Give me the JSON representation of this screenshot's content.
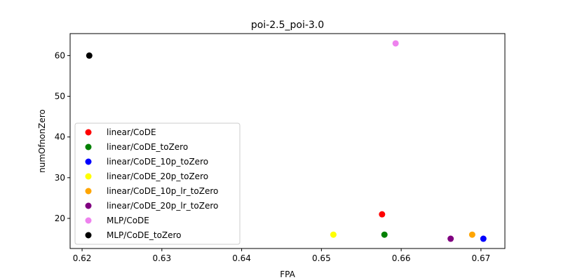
{
  "chart_data": {
    "type": "scatter",
    "title": "poi-2.5_poi-3.0",
    "xlabel": "FPA",
    "ylabel": "numOfnonZero",
    "xlim": [
      0.6185,
      0.673
    ],
    "ylim": [
      12.6,
      65.4
    ],
    "xticks": [
      0.62,
      0.63,
      0.64,
      0.65,
      0.66,
      0.67
    ],
    "xtick_labels": [
      "0.62",
      "0.63",
      "0.64",
      "0.65",
      "0.66",
      "0.67"
    ],
    "yticks": [
      20,
      30,
      40,
      50,
      60
    ],
    "ytick_labels": [
      "20",
      "30",
      "40",
      "50",
      "60"
    ],
    "grid": false,
    "legend_position": "lower-left",
    "series": [
      {
        "name": "linear/CoDE",
        "color": "#ff0000",
        "points": [
          {
            "x": 0.6576,
            "y": 21
          }
        ]
      },
      {
        "name": "linear/CoDE_toZero",
        "color": "#008000",
        "points": [
          {
            "x": 0.6579,
            "y": 16
          }
        ]
      },
      {
        "name": "linear/CoDE_10p_toZero",
        "color": "#0000ff",
        "points": [
          {
            "x": 0.6703,
            "y": 15
          }
        ]
      },
      {
        "name": "linear/CoDE_20p_toZero",
        "color": "#ffff00",
        "points": [
          {
            "x": 0.6515,
            "y": 16
          }
        ]
      },
      {
        "name": "linear/CoDE_10p_lr_toZero",
        "color": "#ffa500",
        "points": [
          {
            "x": 0.6689,
            "y": 16
          }
        ]
      },
      {
        "name": "linear/CoDE_20p_lr_toZero",
        "color": "#800080",
        "points": [
          {
            "x": 0.6662,
            "y": 15
          }
        ]
      },
      {
        "name": "MLP/CoDE",
        "color": "#ee82ee",
        "points": [
          {
            "x": 0.6593,
            "y": 63
          }
        ]
      },
      {
        "name": "MLP/CoDE_toZero",
        "color": "#000000",
        "points": [
          {
            "x": 0.6209,
            "y": 60
          }
        ]
      }
    ]
  }
}
